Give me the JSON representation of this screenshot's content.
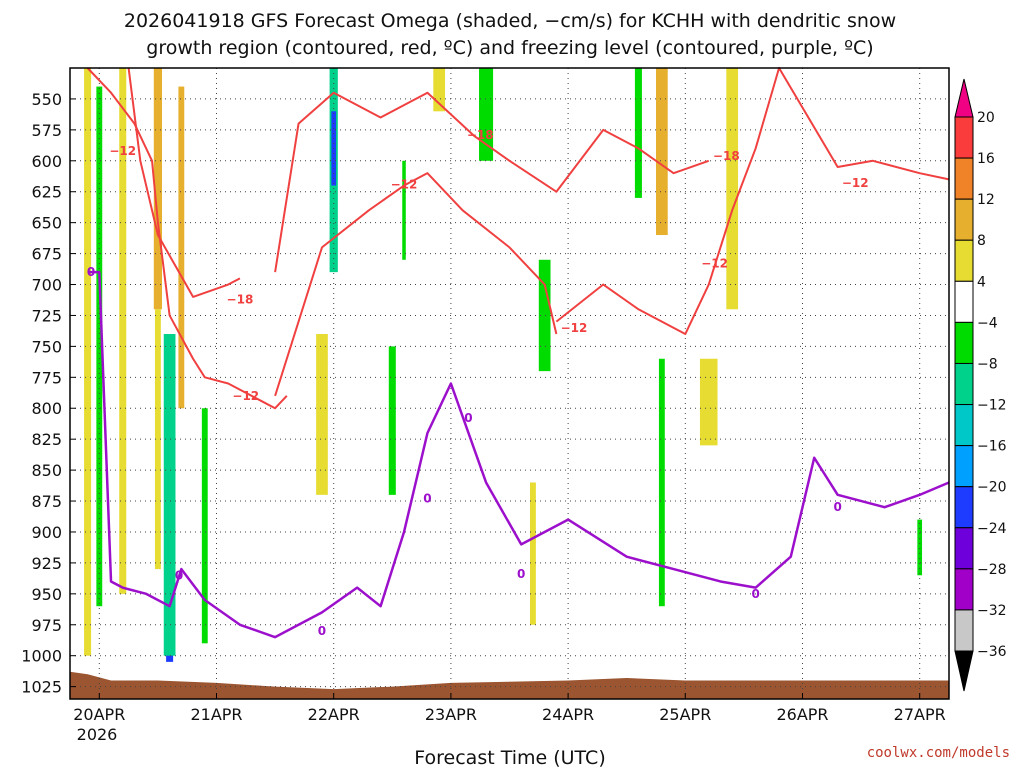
{
  "title": {
    "line1": "2026041918 GFS Forecast Omega (shaded, −cm/s) for KCHH with dendritic snow",
    "line2": "growth region (contoured, red, ºC) and freezing level (contoured, purple, ºC)"
  },
  "credit": "coolwx.com/models",
  "chart_data": {
    "type": "heatmap",
    "title": "2026041918 GFS Forecast Omega (shaded, −cm/s) for KCHH with dendritic snow growth region (contoured, red, ºC) and freezing level (contoured, purple, ºC)",
    "xlabel": "Forecast Time (UTC)",
    "ylabel": "",
    "x_ticks": [
      "20APR",
      "21APR",
      "22APR",
      "23APR",
      "24APR",
      "25APR",
      "26APR",
      "27APR"
    ],
    "x_year": "2026",
    "xlim": [
      19.75,
      27.25
    ],
    "y_ticks": [
      550,
      575,
      600,
      625,
      650,
      675,
      700,
      725,
      750,
      775,
      800,
      825,
      850,
      875,
      900,
      925,
      950,
      975,
      1000,
      1025
    ],
    "ylim": [
      1035,
      525
    ],
    "grid": true,
    "colorbar": {
      "levels": [
        -36,
        -32,
        -28,
        -24,
        -20,
        -16,
        -12,
        -8,
        -4,
        4,
        8,
        12,
        16,
        20
      ],
      "labels": [
        "20",
        "16",
        "12",
        "8",
        "4",
        "−4",
        "−8",
        "−12",
        "−16",
        "−20",
        "−24",
        "−28",
        "−32",
        "−36"
      ],
      "colors": [
        "#c8c8c8",
        "#a000c8",
        "#6e00dc",
        "#1e3cff",
        "#00a0ff",
        "#00c8c8",
        "#00d28c",
        "#00dc00",
        "#ffffff",
        "#e6dc32",
        "#e6af2d",
        "#f08228",
        "#fa3c3c",
        "#f00082"
      ],
      "extend_low_color": "#000000",
      "extend_high_color": "#f00082"
    },
    "omega_patches": [
      {
        "x": 19.9,
        "p0": 525,
        "p1": 1000,
        "w": 0.06,
        "value": 6
      },
      {
        "x": 20.0,
        "p0": 540,
        "p1": 960,
        "w": 0.05,
        "value": -8
      },
      {
        "x": 20.2,
        "p0": 525,
        "p1": 950,
        "w": 0.06,
        "value": 6
      },
      {
        "x": 20.5,
        "p0": 525,
        "p1": 720,
        "w": 0.07,
        "value": 10
      },
      {
        "x": 20.5,
        "p0": 720,
        "p1": 930,
        "w": 0.05,
        "value": 6
      },
      {
        "x": 20.7,
        "p0": 540,
        "p1": 800,
        "w": 0.05,
        "value": 10
      },
      {
        "x": 20.6,
        "p0": 760,
        "p1": 1005,
        "w": 0.06,
        "value": -24
      },
      {
        "x": 20.6,
        "p0": 740,
        "p1": 1000,
        "w": 0.1,
        "value": -12
      },
      {
        "x": 20.9,
        "p0": 800,
        "p1": 990,
        "w": 0.05,
        "value": -8
      },
      {
        "x": 22.0,
        "p0": 525,
        "p1": 690,
        "w": 0.07,
        "value": -12
      },
      {
        "x": 22.0,
        "p0": 560,
        "p1": 620,
        "w": 0.04,
        "value": -24
      },
      {
        "x": 21.9,
        "p0": 740,
        "p1": 870,
        "w": 0.1,
        "value": 6
      },
      {
        "x": 22.6,
        "p0": 600,
        "p1": 680,
        "w": 0.03,
        "value": -8
      },
      {
        "x": 22.5,
        "p0": 750,
        "p1": 870,
        "w": 0.06,
        "value": -8
      },
      {
        "x": 22.9,
        "p0": 525,
        "p1": 560,
        "w": 0.1,
        "value": 6
      },
      {
        "x": 23.3,
        "p0": 525,
        "p1": 600,
        "w": 0.12,
        "value": -8
      },
      {
        "x": 23.8,
        "p0": 680,
        "p1": 770,
        "w": 0.1,
        "value": -8
      },
      {
        "x": 23.7,
        "p0": 860,
        "p1": 975,
        "w": 0.05,
        "value": 6
      },
      {
        "x": 24.6,
        "p0": 525,
        "p1": 630,
        "w": 0.06,
        "value": -8
      },
      {
        "x": 24.8,
        "p0": 525,
        "p1": 660,
        "w": 0.1,
        "value": 10
      },
      {
        "x": 24.8,
        "p0": 760,
        "p1": 960,
        "w": 0.05,
        "value": -8
      },
      {
        "x": 25.2,
        "p0": 760,
        "p1": 830,
        "w": 0.15,
        "value": 6
      },
      {
        "x": 25.4,
        "p0": 525,
        "p1": 720,
        "w": 0.1,
        "value": 6
      },
      {
        "x": 27.0,
        "p0": 890,
        "p1": 935,
        "w": 0.04,
        "value": -8
      }
    ],
    "series": [
      {
        "name": "-12",
        "role": "dendritic growth region",
        "color": "#f04040",
        "x": [
          19.9,
          20.1,
          20.3,
          20.45,
          20.5,
          20.6,
          20.8,
          20.9,
          21.1,
          21.4,
          21.5,
          21.6
        ],
        "y": [
          525,
          545,
          570,
          600,
          650,
          725,
          760,
          775,
          780,
          795,
          800,
          790
        ]
      },
      {
        "name": "-18",
        "role": "dendritic growth region",
        "color": "#f04040",
        "x": [
          20.25,
          20.35,
          20.5,
          20.8,
          21.1,
          21.2
        ],
        "y": [
          525,
          600,
          660,
          710,
          700,
          695
        ]
      },
      {
        "name": "-12",
        "role": "dendritic growth region",
        "color": "#f04040",
        "x": [
          21.5,
          21.9,
          22.3,
          22.6,
          22.8,
          23.1,
          23.5,
          23.8,
          23.9
        ],
        "y": [
          790,
          670,
          640,
          620,
          610,
          640,
          670,
          700,
          740
        ]
      },
      {
        "name": "-18",
        "role": "dendritic growth region",
        "color": "#f04040",
        "x": [
          21.5,
          21.7,
          22.0,
          22.4,
          22.8,
          23.2,
          23.5,
          23.9,
          24.3,
          24.6,
          24.9,
          25.2
        ],
        "y": [
          690,
          570,
          545,
          565,
          545,
          580,
          600,
          625,
          575,
          590,
          610,
          600
        ]
      },
      {
        "name": "-12",
        "role": "dendritic growth region",
        "color": "#f04040",
        "x": [
          23.9,
          24.3,
          24.6,
          25.0,
          25.2,
          25.4,
          25.6,
          25.8,
          26.3,
          26.6,
          27.0,
          27.25
        ],
        "y": [
          730,
          700,
          720,
          740,
          700,
          640,
          590,
          525,
          605,
          600,
          610,
          615
        ]
      },
      {
        "name": "0",
        "role": "freezing level",
        "color": "#9c10cc",
        "x": [
          19.9,
          20.0,
          20.1,
          20.2,
          20.4,
          20.6,
          20.7,
          20.9,
          21.2,
          21.5,
          21.9,
          22.2,
          22.4,
          22.6,
          22.8,
          23.0,
          23.3,
          23.6,
          24.0,
          24.5,
          24.9,
          25.3,
          25.6,
          25.9,
          26.1,
          26.3,
          26.7,
          27.0,
          27.25
        ],
        "y": [
          690,
          690,
          940,
          945,
          950,
          960,
          930,
          955,
          975,
          985,
          965,
          945,
          960,
          900,
          820,
          780,
          860,
          910,
          890,
          920,
          930,
          940,
          945,
          920,
          840,
          870,
          880,
          870,
          860
        ]
      }
    ],
    "contour_labels": [
      {
        "text": "−12",
        "x": 20.2,
        "y": 592,
        "color": "#f04040"
      },
      {
        "text": "−18",
        "x": 21.2,
        "y": 712,
        "color": "#f04040"
      },
      {
        "text": "−12",
        "x": 21.25,
        "y": 790,
        "color": "#f04040"
      },
      {
        "text": "−12",
        "x": 22.6,
        "y": 619,
        "color": "#f04040"
      },
      {
        "text": "−18",
        "x": 23.25,
        "y": 579,
        "color": "#f04040"
      },
      {
        "text": "−12",
        "x": 24.05,
        "y": 735,
        "color": "#f04040"
      },
      {
        "text": "−18",
        "x": 25.35,
        "y": 596,
        "color": "#f04040"
      },
      {
        "text": "−12",
        "x": 25.25,
        "y": 683,
        "color": "#f04040"
      },
      {
        "text": "−12",
        "x": 26.45,
        "y": 618,
        "color": "#f04040"
      },
      {
        "text": "0",
        "x": 19.93,
        "y": 690,
        "color": "#9c10cc"
      },
      {
        "text": "0",
        "x": 20.68,
        "y": 935,
        "color": "#9c10cc"
      },
      {
        "text": "0",
        "x": 21.9,
        "y": 980,
        "color": "#9c10cc"
      },
      {
        "text": "0",
        "x": 22.8,
        "y": 873,
        "color": "#9c10cc"
      },
      {
        "text": "0",
        "x": 23.15,
        "y": 808,
        "color": "#9c10cc"
      },
      {
        "text": "0",
        "x": 23.6,
        "y": 934,
        "color": "#9c10cc"
      },
      {
        "text": "0",
        "x": 25.6,
        "y": 950,
        "color": "#9c10cc"
      },
      {
        "text": "0",
        "x": 26.3,
        "y": 880,
        "color": "#9c10cc"
      }
    ],
    "terrain": {
      "color": "#9b5530",
      "x": [
        19.75,
        19.9,
        20.1,
        20.5,
        21.0,
        21.5,
        22.0,
        22.5,
        23.0,
        24.0,
        24.5,
        25.0,
        26.0,
        27.0,
        27.25
      ],
      "y": [
        1013,
        1015,
        1020,
        1020,
        1022,
        1025,
        1027,
        1025,
        1022,
        1020,
        1018,
        1020,
        1020,
        1020,
        1020
      ]
    }
  }
}
